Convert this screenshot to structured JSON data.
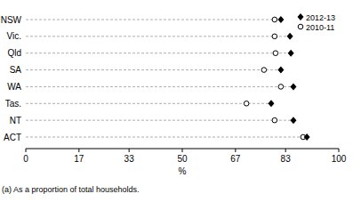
{
  "chart_data": {
    "type": "dot",
    "orientation": "horizontal",
    "categories": [
      "NSW",
      "Vic.",
      "Qld",
      "SA",
      "WA",
      "Tas.",
      "NT",
      "ACT"
    ],
    "series": [
      {
        "name": "2012-13",
        "color": "#000000",
        "marker": "diamond",
        "values": [
          81.5,
          84.4,
          84.7,
          81.5,
          85.5,
          78.4,
          85.5,
          89.8
        ]
      },
      {
        "name": "2010-11",
        "color": "#000000",
        "marker": "open-circle",
        "values": [
          79.5,
          79.5,
          79.8,
          76.1,
          81.5,
          70.5,
          79.5,
          88.6
        ]
      }
    ],
    "x_label": "%",
    "footnote": "(a) As a proportion of total households.",
    "xlim": [
      0,
      100
    ],
    "xticks": [
      0,
      17,
      33,
      50,
      67,
      83,
      100
    ],
    "legend": "top-right",
    "grid": false
  }
}
